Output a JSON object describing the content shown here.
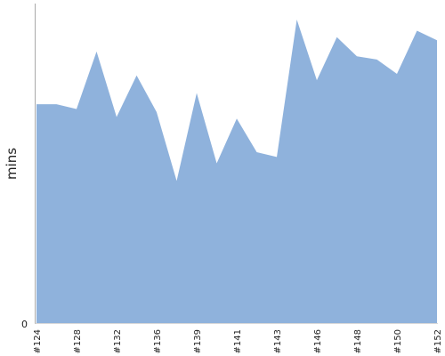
{
  "chart_data": {
    "type": "area",
    "ylabel": "mins",
    "y_tick_labels": [
      "0"
    ],
    "ylim": [
      0,
      100
    ],
    "color": "#8fb2dc",
    "axis_color": "#aaaaaa",
    "grid": false,
    "x_tick_labels": [
      "#124",
      "#128",
      "#132",
      "#136",
      "#139",
      "#141",
      "#143",
      "#146",
      "#148",
      "#150",
      "#152"
    ],
    "x_tick_indices": [
      0,
      2,
      4,
      6,
      8,
      10,
      12,
      14,
      16,
      18,
      20
    ],
    "values": [
      68.5,
      68.5,
      67.0,
      85.0,
      64.5,
      77.5,
      66.0,
      44.5,
      72.0,
      50.0,
      64.0,
      53.5,
      52.0,
      95.0,
      76.0,
      89.5,
      83.5,
      82.5,
      78.0,
      91.5,
      88.5
    ]
  }
}
